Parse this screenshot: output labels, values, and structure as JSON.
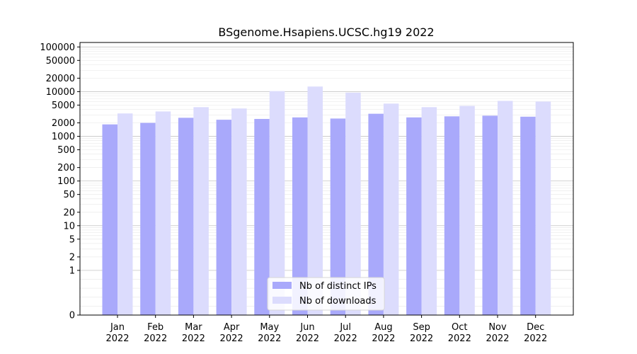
{
  "chart_data": {
    "type": "bar",
    "title": "BSgenome.Hsapiens.UCSC.hg19 2022",
    "xlabel": "",
    "ylabel": "",
    "scale": "symlog",
    "grid": true,
    "legend_position": "lower-center",
    "categories": [
      [
        "Jan",
        "2022"
      ],
      [
        "Feb",
        "2022"
      ],
      [
        "Mar",
        "2022"
      ],
      [
        "Apr",
        "2022"
      ],
      [
        "May",
        "2022"
      ],
      [
        "Jun",
        "2022"
      ],
      [
        "Jul",
        "2022"
      ],
      [
        "Aug",
        "2022"
      ],
      [
        "Sep",
        "2022"
      ],
      [
        "Oct",
        "2022"
      ],
      [
        "Nov",
        "2022"
      ],
      [
        "Dec",
        "2022"
      ]
    ],
    "yticks": [
      0,
      1,
      2,
      5,
      10,
      20,
      50,
      100,
      200,
      500,
      1000,
      2000,
      5000,
      10000,
      20000,
      50000,
      100000
    ],
    "ytick_labels": [
      "0",
      "1",
      "2",
      "5",
      "10",
      "20",
      "50",
      "100",
      "200",
      "500",
      "1000",
      "2000",
      "5000",
      "10000",
      "20000",
      "50000",
      "100000"
    ],
    "series": [
      {
        "name": "Nb of distinct IPs",
        "color": "#a9a9fb",
        "values": [
          1850,
          2000,
          2600,
          2350,
          2450,
          2650,
          2500,
          3200,
          2650,
          2800,
          2900,
          2750
        ]
      },
      {
        "name": "Nb of downloads",
        "color": "#dcdcfd",
        "values": [
          3250,
          3600,
          4500,
          4200,
          10300,
          13000,
          9500,
          5400,
          4500,
          4800,
          6200,
          6000
        ]
      }
    ]
  }
}
